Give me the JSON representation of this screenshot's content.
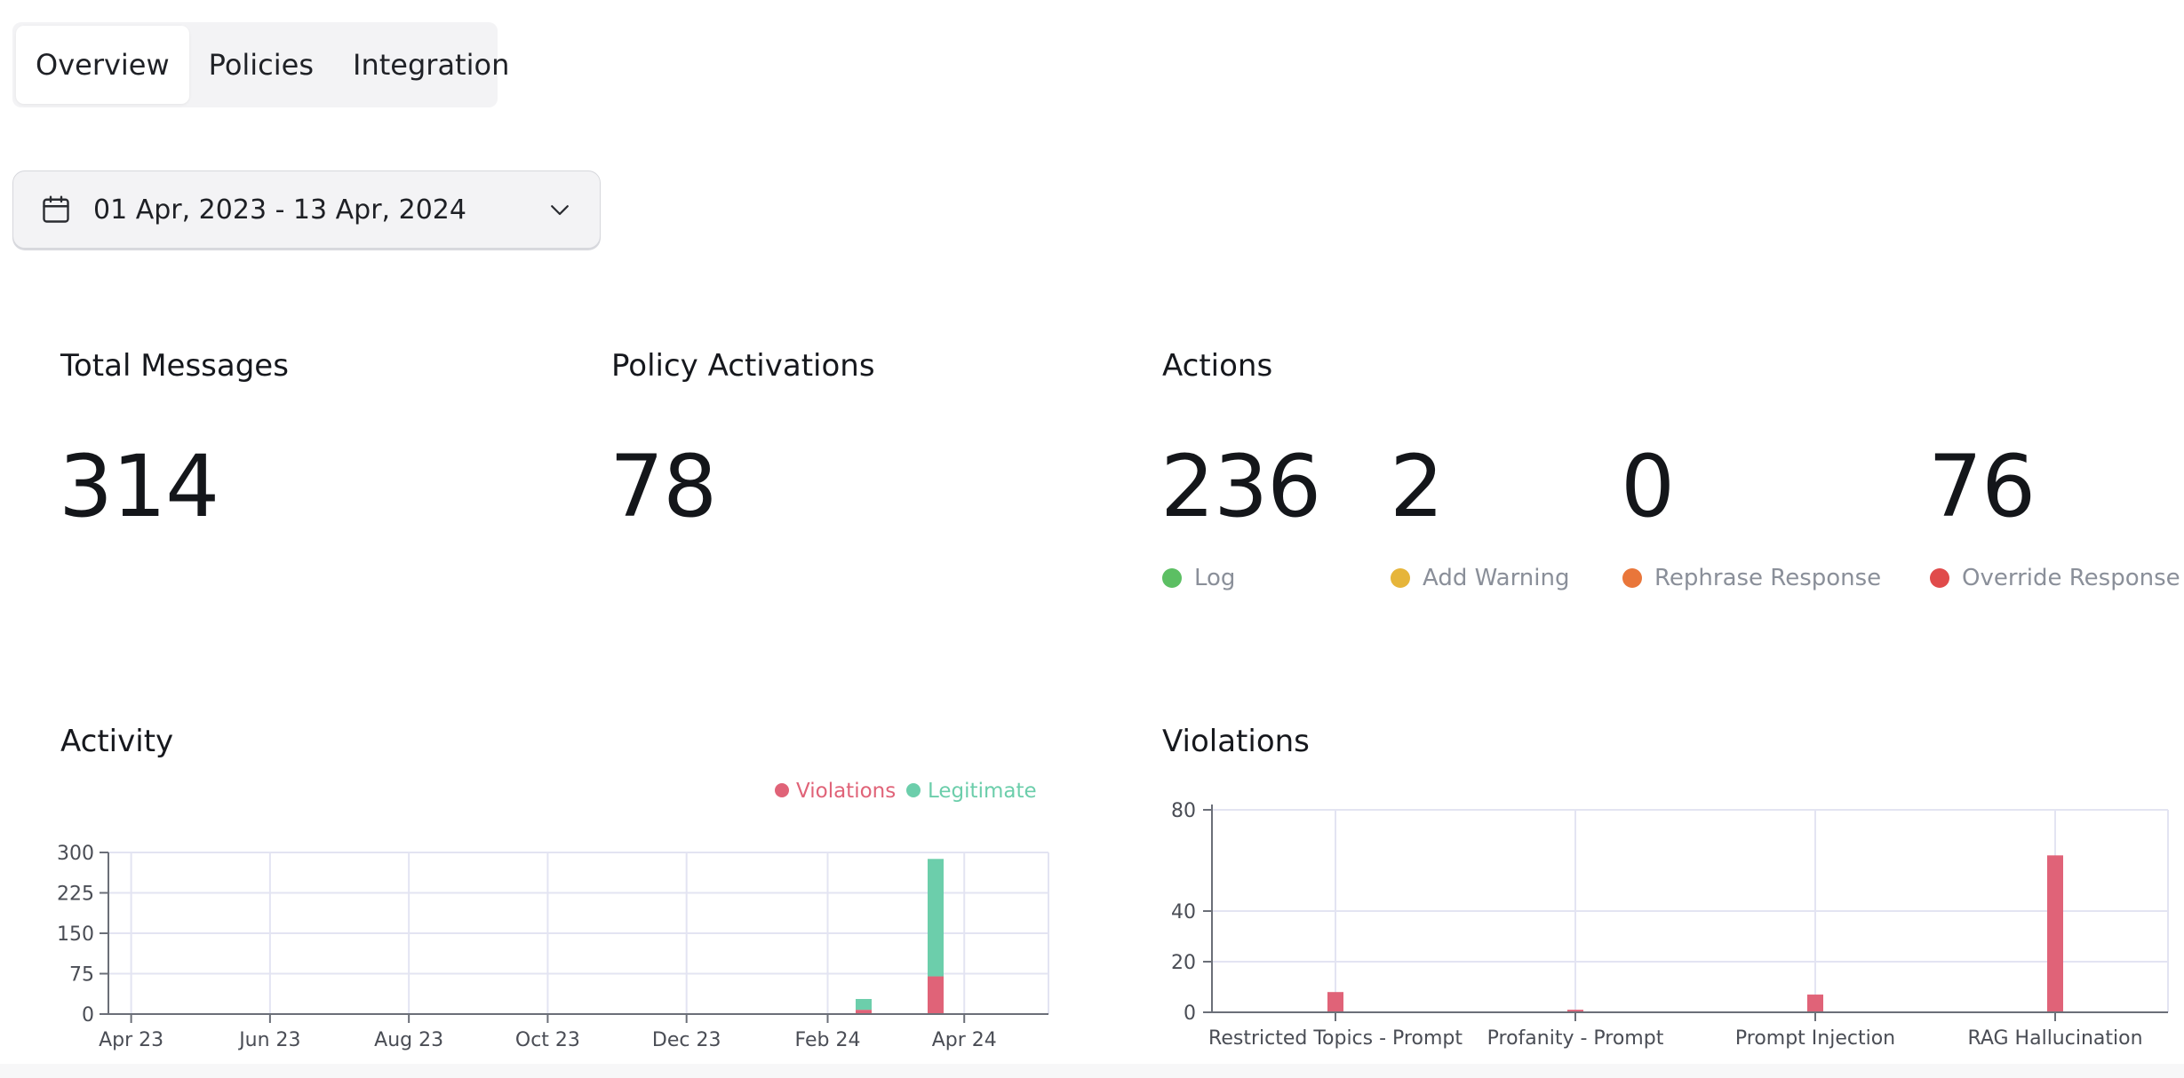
{
  "tabs": [
    {
      "label": "Overview",
      "active": true
    },
    {
      "label": "Policies",
      "active": false
    },
    {
      "label": "Integration",
      "active": false
    }
  ],
  "date_range": {
    "label": "01 Apr, 2023 - 13 Apr, 2024",
    "icon": "calendar-icon",
    "chevron": "chevron-down-icon"
  },
  "stats": {
    "total_messages": {
      "title": "Total Messages",
      "value": "314"
    },
    "policy_activations": {
      "title": "Policy Activations",
      "value": "78"
    },
    "actions": {
      "title": "Actions",
      "items": [
        {
          "value": "236",
          "label": "Log",
          "color": "#5cbf63"
        },
        {
          "value": "2",
          "label": "Add Warning",
          "color": "#e6b53a"
        },
        {
          "value": "0",
          "label": "Rephrase Response",
          "color": "#e9763a"
        },
        {
          "value": "76",
          "label": "Override Response",
          "color": "#e04b4b"
        }
      ]
    }
  },
  "activity": {
    "title": "Activity"
  },
  "violations": {
    "title": "Violations"
  },
  "chart_data": [
    {
      "type": "bar",
      "stacked": true,
      "title": "Activity",
      "legend_position": "top-right",
      "x_ticks": [
        "Apr 23",
        "Jun 23",
        "Aug 23",
        "Oct 23",
        "Dec 23",
        "Feb 24",
        "Apr 24"
      ],
      "y_ticks": [
        "300",
        "225",
        "150",
        "75",
        "0"
      ],
      "ylim": [
        0,
        300
      ],
      "grid": true,
      "x": [
        "2024-02-01",
        "2024-03-01"
      ],
      "series": [
        {
          "name": "Violations",
          "color": "#e06378",
          "values": [
            8,
            70
          ]
        },
        {
          "name": "Legitimate",
          "color": "#6cceab",
          "values": [
            20,
            218
          ]
        }
      ]
    },
    {
      "type": "bar",
      "title": "Violations",
      "categories": [
        "Restricted Topics - Prompt",
        "Profanity - Prompt",
        "Prompt Injection",
        "RAG Hallucination"
      ],
      "values": [
        8,
        1,
        7,
        62
      ],
      "y_ticks": [
        "80",
        "40",
        "20",
        "0"
      ],
      "ylim": [
        0,
        80
      ],
      "grid": true,
      "color": "#e06378"
    }
  ]
}
